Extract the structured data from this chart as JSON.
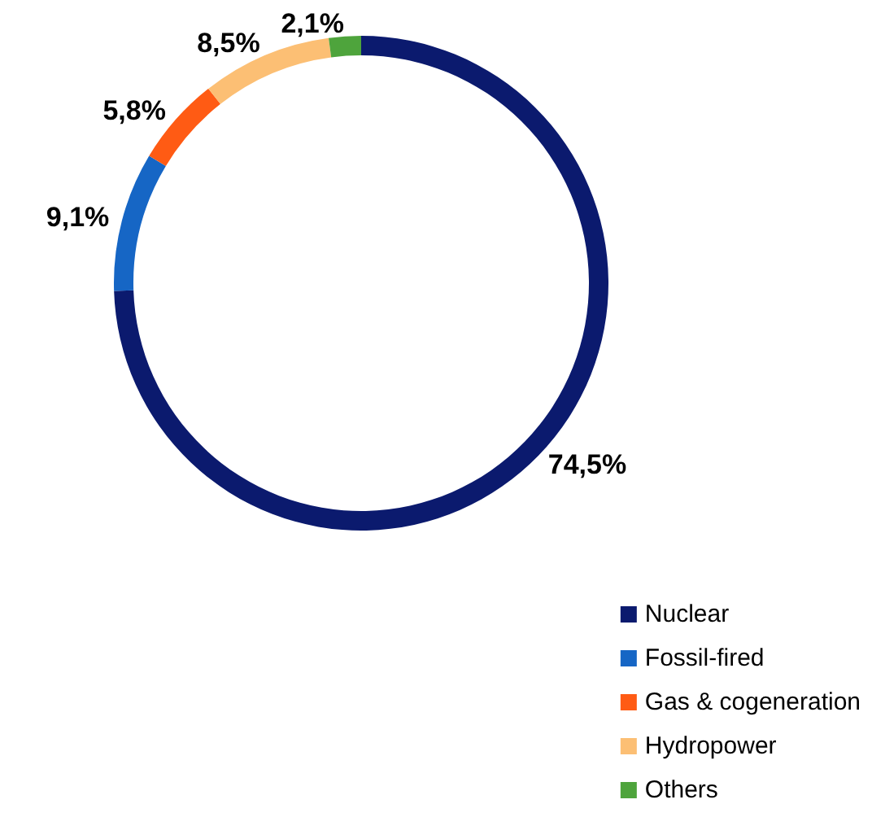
{
  "chart_data": {
    "type": "donut",
    "categories": [
      "Nuclear",
      "Fossil-fired",
      "Gas & cogeneration",
      "Hydropower",
      "Others"
    ],
    "values": [
      74.5,
      9.1,
      5.8,
      8.5,
      2.1
    ],
    "value_labels": [
      "74,5%",
      "9,1%",
      "5,8%",
      "8,5%",
      "2,1%"
    ],
    "colors": [
      "#0b1a6e",
      "#1666c5",
      "#ff5b14",
      "#fcbf74",
      "#4ea43c"
    ],
    "legend": "bottom right"
  }
}
